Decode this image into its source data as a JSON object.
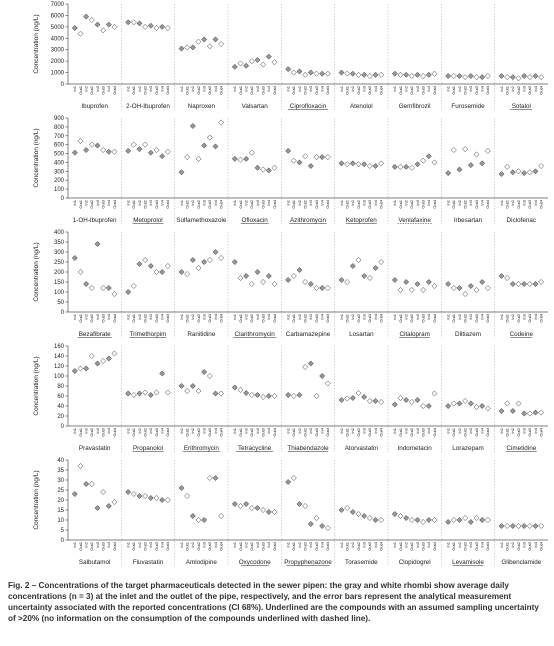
{
  "chart_data": [
    {
      "type": "dot",
      "ylabel": "Concentration (ng/L)",
      "ylim": [
        0,
        7000
      ],
      "yticks": [
        0,
        1000,
        2000,
        3000,
        4000,
        5000,
        6000,
        7000
      ],
      "point_labels": [
        "In1",
        "Out1",
        "In2",
        "Out2",
        "In3",
        "Out3",
        "In4",
        "Out4"
      ],
      "in_color": "#999999",
      "out_color": "#ffffff",
      "groups": [
        {
          "name": "Ibuprofen",
          "values": [
            4900,
            4400,
            5900,
            5600,
            5200,
            4700,
            5200,
            5000
          ]
        },
        {
          "name": "2-OH-Ibuprofen",
          "values": [
            5400,
            5400,
            5300,
            5000,
            5100,
            4900,
            5000,
            4900
          ]
        },
        {
          "name": "Naproxen",
          "values": [
            3100,
            3200,
            3200,
            3700,
            3900,
            3300,
            3900,
            3500
          ]
        },
        {
          "name": "Valsartan",
          "values": [
            1500,
            1800,
            1600,
            2000,
            2100,
            1700,
            2400,
            1900
          ]
        },
        {
          "name": "Ciprofloxacin",
          "underline": "solid",
          "values": [
            1300,
            1000,
            1100,
            800,
            1000,
            900,
            900,
            900
          ]
        },
        {
          "name": "Atenolol",
          "values": [
            1000,
            900,
            900,
            800,
            800,
            700,
            800,
            800
          ]
        },
        {
          "name": "Gemfibrozil",
          "values": [
            900,
            800,
            800,
            700,
            800,
            700,
            800,
            900
          ]
        },
        {
          "name": "Furosemide",
          "values": [
            700,
            700,
            700,
            600,
            700,
            600,
            600,
            700
          ]
        },
        {
          "name": "Sotalol",
          "underline": "solid",
          "values": [
            700,
            600,
            600,
            500,
            700,
            600,
            700,
            600
          ]
        }
      ]
    },
    {
      "type": "dot",
      "ylabel": "Concentration (ng/L)",
      "ylim": [
        0,
        900
      ],
      "yticks": [
        0,
        100,
        200,
        300,
        400,
        500,
        600,
        700,
        800,
        900
      ],
      "point_labels": [
        "In1",
        "Out1",
        "In2",
        "Out2",
        "In3",
        "Out3",
        "In4",
        "Out4"
      ],
      "in_color": "#999999",
      "out_color": "#ffffff",
      "groups": [
        {
          "name": "1-OH-Ibuprofen",
          "values": [
            510,
            640,
            540,
            600,
            590,
            540,
            520,
            520
          ]
        },
        {
          "name": "Metoprolol",
          "underline": "solid",
          "values": [
            530,
            600,
            550,
            600,
            510,
            540,
            470,
            520
          ]
        },
        {
          "name": "Sulfamethoxazole",
          "values": [
            290,
            460,
            810,
            440,
            590,
            680,
            580,
            850
          ]
        },
        {
          "name": "Ofloxacin",
          "underline": "solid",
          "values": [
            440,
            430,
            440,
            510,
            340,
            320,
            310,
            340
          ]
        },
        {
          "name": "Azithromycin",
          "underline": "solid",
          "values": [
            530,
            420,
            400,
            470,
            360,
            460,
            460,
            460
          ]
        },
        {
          "name": "Ketoprofen",
          "underline": "solid",
          "values": [
            390,
            380,
            390,
            380,
            380,
            360,
            360,
            390
          ]
        },
        {
          "name": "Venlafaxine",
          "underline": "dashed",
          "values": [
            350,
            350,
            350,
            340,
            380,
            420,
            470,
            400
          ]
        },
        {
          "name": "Irbesartan",
          "values": [
            280,
            540,
            320,
            550,
            370,
            490,
            390,
            530
          ]
        },
        {
          "name": "Diclofenac",
          "values": [
            270,
            350,
            290,
            300,
            280,
            290,
            300,
            360
          ]
        }
      ]
    },
    {
      "type": "dot",
      "ylabel": "Concentration (ng/L)",
      "ylim": [
        0,
        400
      ],
      "yticks": [
        0,
        50,
        100,
        150,
        200,
        250,
        300,
        350,
        400
      ],
      "point_labels": [
        "In1",
        "Out1",
        "In2",
        "Out2",
        "In3",
        "Out3",
        "In4",
        "Out4"
      ],
      "in_color": "#999999",
      "out_color": "#ffffff",
      "groups": [
        {
          "name": "Bezafibrate",
          "underline": "solid",
          "values": [
            270,
            200,
            140,
            120,
            340,
            120,
            120,
            90
          ]
        },
        {
          "name": "Trimethorpim",
          "underline": "solid",
          "values": [
            100,
            130,
            240,
            260,
            230,
            200,
            200,
            230
          ]
        },
        {
          "name": "Ranitidine",
          "values": [
            200,
            190,
            260,
            220,
            250,
            260,
            300,
            270
          ]
        },
        {
          "name": "Clarithromycin",
          "underline": "solid",
          "values": [
            250,
            170,
            180,
            140,
            200,
            150,
            180,
            140
          ]
        },
        {
          "name": "Carbamazepine",
          "values": [
            160,
            180,
            210,
            150,
            140,
            120,
            120,
            120
          ]
        },
        {
          "name": "Losartan",
          "values": [
            160,
            150,
            230,
            260,
            180,
            170,
            220,
            250
          ]
        },
        {
          "name": "Citalopram",
          "underline": "solid",
          "values": [
            160,
            110,
            150,
            110,
            140,
            110,
            150,
            130
          ]
        },
        {
          "name": "Diltiazem",
          "values": [
            140,
            120,
            120,
            90,
            130,
            110,
            150,
            120
          ]
        },
        {
          "name": "Codeine",
          "underline": "solid",
          "values": [
            180,
            170,
            140,
            140,
            140,
            140,
            140,
            150
          ]
        }
      ]
    },
    {
      "type": "dot",
      "ylabel": "Concentration (ng/L)",
      "ylim": [
        0,
        160
      ],
      "yticks": [
        0,
        20,
        40,
        60,
        80,
        100,
        120,
        140,
        160
      ],
      "point_labels": [
        "In1",
        "Out1",
        "In2",
        "Out2",
        "In3",
        "Out3",
        "In4",
        "Out4"
      ],
      "in_color": "#999999",
      "out_color": "#ffffff",
      "groups": [
        {
          "name": "Pravastatin",
          "values": [
            110,
            115,
            115,
            140,
            125,
            130,
            135,
            145
          ]
        },
        {
          "name": "Propanolol",
          "underline": "solid",
          "values": [
            65,
            62,
            65,
            67,
            62,
            67,
            105,
            67
          ]
        },
        {
          "name": "Erithromycin",
          "underline": "solid",
          "values": [
            80,
            70,
            80,
            70,
            108,
            100,
            65,
            65
          ]
        },
        {
          "name": "Tetracycline",
          "underline": "solid",
          "values": [
            77,
            72,
            66,
            62,
            62,
            58,
            60,
            60
          ]
        },
        {
          "name": "Thiabendazole",
          "underline": "solid",
          "values": [
            62,
            60,
            62,
            118,
            125,
            60,
            100,
            85
          ]
        },
        {
          "name": "Atorvastatin",
          "values": [
            52,
            55,
            56,
            66,
            58,
            50,
            50,
            48
          ]
        },
        {
          "name": "Indometacin",
          "values": [
            43,
            56,
            52,
            48,
            52,
            40,
            40,
            65
          ]
        },
        {
          "name": "Lorazepam",
          "values": [
            40,
            45,
            45,
            50,
            45,
            38,
            40,
            35
          ]
        },
        {
          "name": "Cimetidine",
          "underline": "solid",
          "values": [
            30,
            45,
            30,
            45,
            25,
            25,
            27,
            27
          ]
        }
      ]
    },
    {
      "type": "dot",
      "ylabel": "Concentration (ng/L)",
      "ylim": [
        0,
        40
      ],
      "yticks": [
        0,
        5,
        10,
        15,
        20,
        25,
        30,
        35,
        40
      ],
      "point_labels": [
        "In1",
        "Out1",
        "In2",
        "Out2",
        "In3",
        "Out3",
        "In4",
        "Out4"
      ],
      "in_color": "#999999",
      "out_color": "#ffffff",
      "groups": [
        {
          "name": "Salbutamol",
          "values": [
            23,
            37,
            28,
            28,
            16,
            24,
            17,
            19
          ]
        },
        {
          "name": "Fluvastatin",
          "values": [
            24,
            23,
            22,
            22,
            21,
            21,
            20,
            20
          ]
        },
        {
          "name": "Amlodipine",
          "values": [
            26,
            22,
            12,
            10,
            10,
            31,
            31,
            12
          ]
        },
        {
          "name": "Oxycodone",
          "underline": "solid",
          "values": [
            18,
            17,
            18,
            16,
            16,
            15,
            14,
            14
          ]
        },
        {
          "name": "Propyphenazone",
          "underline": "solid",
          "values": [
            29,
            31,
            18,
            17,
            8,
            11,
            7,
            6
          ]
        },
        {
          "name": "Torasemide",
          "values": [
            15,
            16,
            14,
            13,
            12,
            11,
            10,
            10
          ]
        },
        {
          "name": "Clopidogrel",
          "values": [
            13,
            12,
            11,
            10,
            10,
            9,
            10,
            10
          ]
        },
        {
          "name": "Levamisole",
          "underline": "solid",
          "values": [
            9,
            10,
            10,
            11,
            9,
            11,
            10,
            10
          ]
        },
        {
          "name": "Glibenclamide",
          "values": [
            7,
            7,
            7,
            7,
            7,
            7,
            7,
            7
          ]
        }
      ]
    }
  ],
  "caption": "Fig. 2 – Concentrations of the target pharmaceuticals detected in the sewer pipen: the gray and white rhombi show average daily concentrations (n = 3) at the inlet and the outlet of the pipe, respectively, and the error bars represent the analytical measurement uncertainty associated with the reported concentrations (CI 68%). Underlined are the compounds with an assumed sampling uncertainty of >20% (no information on the consumption of the compounds underlined with dashed line)."
}
